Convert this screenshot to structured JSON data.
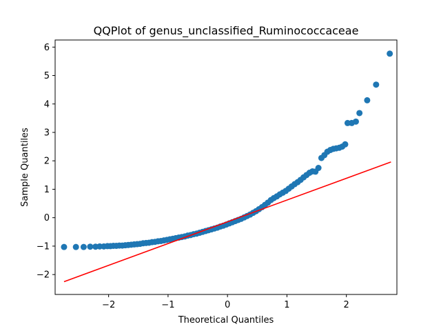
{
  "chart_data": {
    "type": "scatter",
    "title": "QQPlot of genus_unclassified_Ruminococcaceae",
    "xlabel": "Theoretical Quantiles",
    "ylabel": "Sample Quantiles",
    "xlim": [
      -2.9,
      2.85
    ],
    "ylim": [
      -2.7,
      6.25
    ],
    "xticks": [
      -2,
      -1,
      0,
      1,
      2
    ],
    "xtick_labels": [
      "−2",
      "−1",
      "0",
      "1",
      "2"
    ],
    "yticks": [
      -2,
      -1,
      0,
      1,
      2,
      3,
      4,
      5,
      6
    ],
    "ytick_labels": [
      "−2",
      "−1",
      "0",
      "1",
      "2",
      "3",
      "4",
      "5",
      "6"
    ],
    "grid": false,
    "legend": "none",
    "points_color": "#1f77b4",
    "line_color": "#ff0000",
    "reference_line": {
      "x": [
        -2.75,
        2.75
      ],
      "y": [
        -2.25,
        1.96
      ]
    },
    "series": [
      {
        "x": [
          -2.75,
          -2.55,
          -2.42,
          -2.31,
          -2.22,
          -2.15,
          -2.08,
          -2.02,
          -1.97,
          -1.92,
          -1.87,
          -1.82,
          -1.77,
          -1.72,
          -1.67,
          -1.62,
          -1.57,
          -1.52,
          -1.47,
          -1.42,
          -1.37,
          -1.32,
          -1.27,
          -1.22,
          -1.17,
          -1.12,
          -1.07,
          -1.02,
          -0.97,
          -0.92,
          -0.87,
          -0.82,
          -0.77,
          -0.72,
          -0.67,
          -0.62,
          -0.57,
          -0.52,
          -0.47,
          -0.42,
          -0.37,
          -0.32,
          -0.27,
          -0.22,
          -0.17,
          -0.12,
          -0.07,
          -0.02,
          0.03,
          0.08,
          0.13,
          0.18,
          0.23,
          0.28,
          0.33,
          0.38,
          0.43,
          0.48,
          0.53,
          0.58,
          0.63,
          0.68,
          0.73,
          0.78,
          0.83,
          0.88,
          0.93,
          0.98,
          1.03,
          1.08,
          1.13,
          1.18,
          1.23,
          1.28,
          1.33,
          1.38,
          1.43,
          1.48,
          1.53,
          1.58,
          1.63,
          1.68,
          1.73,
          1.78,
          1.83,
          1.88,
          1.93,
          1.98,
          2.02,
          2.09,
          2.16,
          2.22,
          2.35,
          2.5,
          2.73
        ],
        "y": [
          -1.03,
          -1.03,
          -1.03,
          -1.02,
          -1.02,
          -1.01,
          -1.01,
          -1.0,
          -1.0,
          -0.99,
          -0.99,
          -0.98,
          -0.98,
          -0.97,
          -0.96,
          -0.95,
          -0.94,
          -0.93,
          -0.92,
          -0.9,
          -0.89,
          -0.88,
          -0.86,
          -0.85,
          -0.83,
          -0.82,
          -0.8,
          -0.78,
          -0.76,
          -0.74,
          -0.72,
          -0.7,
          -0.68,
          -0.66,
          -0.63,
          -0.61,
          -0.58,
          -0.56,
          -0.53,
          -0.5,
          -0.47,
          -0.44,
          -0.41,
          -0.38,
          -0.35,
          -0.31,
          -0.28,
          -0.24,
          -0.2,
          -0.16,
          -0.12,
          -0.08,
          -0.04,
          0.01,
          0.06,
          0.11,
          0.17,
          0.23,
          0.3,
          0.37,
          0.45,
          0.53,
          0.62,
          0.69,
          0.75,
          0.82,
          0.88,
          0.94,
          1.02,
          1.1,
          1.18,
          1.25,
          1.33,
          1.42,
          1.5,
          1.58,
          1.63,
          1.62,
          1.75,
          2.1,
          2.2,
          2.32,
          2.38,
          2.42,
          2.44,
          2.46,
          2.5,
          2.58,
          3.33,
          3.33,
          3.38,
          3.68,
          4.13,
          4.68,
          5.77
        ]
      }
    ]
  }
}
